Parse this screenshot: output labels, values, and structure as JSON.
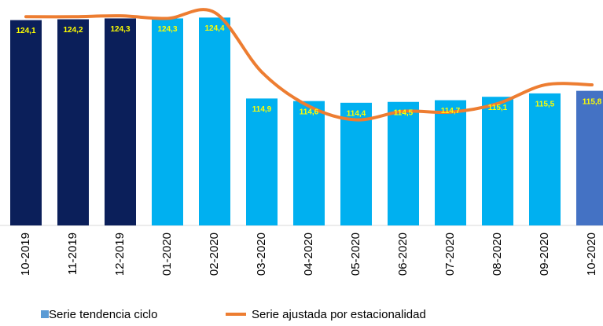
{
  "chart_data": {
    "type": "bar-line",
    "categories": [
      "10-2019",
      "11-2019",
      "12-2019",
      "01-2020",
      "02-2020",
      "03-2020",
      "04-2020",
      "05-2020",
      "06-2020",
      "07-2020",
      "08-2020",
      "09-2020",
      "10-2020"
    ],
    "ylim": [
      100,
      126
    ],
    "series": [
      {
        "name": "Serie tendencia ciclo",
        "type": "bar",
        "color": "#5b9bd5",
        "colors": [
          "#0b1f5a",
          "#0b1f5a",
          "#0b1f5a",
          "#00b0f0",
          "#00b0f0",
          "#00b0f0",
          "#00b0f0",
          "#00b0f0",
          "#00b0f0",
          "#00b0f0",
          "#00b0f0",
          "#00b0f0",
          "#4472c4"
        ],
        "values": [
          124.1,
          124.2,
          124.3,
          124.3,
          124.4,
          114.9,
          114.6,
          114.4,
          114.5,
          114.7,
          115.1,
          115.5,
          115.8
        ],
        "value_labels": [
          "124,1",
          "124,2",
          "124,3",
          "124,3",
          "124,4",
          "114,9",
          "114,6",
          "114,4",
          "114,5",
          "114,7",
          "115,1",
          "115,5",
          "115,8"
        ]
      },
      {
        "name": "Serie ajustada por estacionalidad",
        "type": "line",
        "color": "#ed7d31",
        "values": [
          124.5,
          124.5,
          124.6,
          124.3,
          125.0,
          118.0,
          114.0,
          112.4,
          113.4,
          113.3,
          114.3,
          116.5,
          116.5
        ]
      }
    ]
  }
}
